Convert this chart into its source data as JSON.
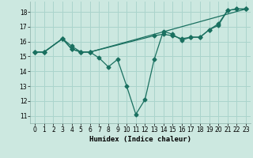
{
  "xlabel": "Humidex (Indice chaleur)",
  "bg_color": "#cce8e0",
  "line_color": "#1a7060",
  "grid_color": "#aad4cc",
  "xlim": [
    -0.5,
    23.5
  ],
  "ylim": [
    10.5,
    18.7
  ],
  "yticks": [
    11,
    12,
    13,
    14,
    15,
    16,
    17,
    18
  ],
  "xticks": [
    0,
    1,
    2,
    3,
    4,
    5,
    6,
    7,
    8,
    9,
    10,
    11,
    12,
    13,
    14,
    15,
    16,
    17,
    18,
    19,
    20,
    21,
    22,
    23
  ],
  "line1_x": [
    0,
    1,
    3,
    4,
    5,
    6,
    7,
    8,
    9,
    10,
    11,
    12,
    13,
    14,
    15,
    16,
    17,
    18,
    19,
    20,
    21,
    22,
    23
  ],
  "line1_y": [
    15.3,
    15.3,
    16.2,
    15.7,
    15.3,
    15.3,
    14.9,
    14.3,
    14.8,
    13.0,
    11.1,
    12.1,
    14.8,
    16.7,
    16.5,
    16.1,
    16.3,
    16.3,
    16.8,
    17.2,
    18.1,
    18.2,
    18.2
  ],
  "line2_x": [
    0,
    1,
    3,
    4,
    5,
    6,
    13,
    14,
    15,
    16,
    17,
    18,
    19,
    20,
    21,
    22,
    23
  ],
  "line2_y": [
    15.3,
    15.3,
    16.2,
    15.5,
    15.3,
    15.3,
    16.4,
    16.5,
    16.4,
    16.2,
    16.3,
    16.3,
    16.8,
    17.1,
    18.1,
    18.2,
    18.2
  ],
  "line3_x": [
    0,
    1,
    3,
    4,
    5,
    6,
    23
  ],
  "line3_y": [
    15.3,
    15.3,
    16.2,
    15.5,
    15.3,
    15.3,
    18.2
  ]
}
